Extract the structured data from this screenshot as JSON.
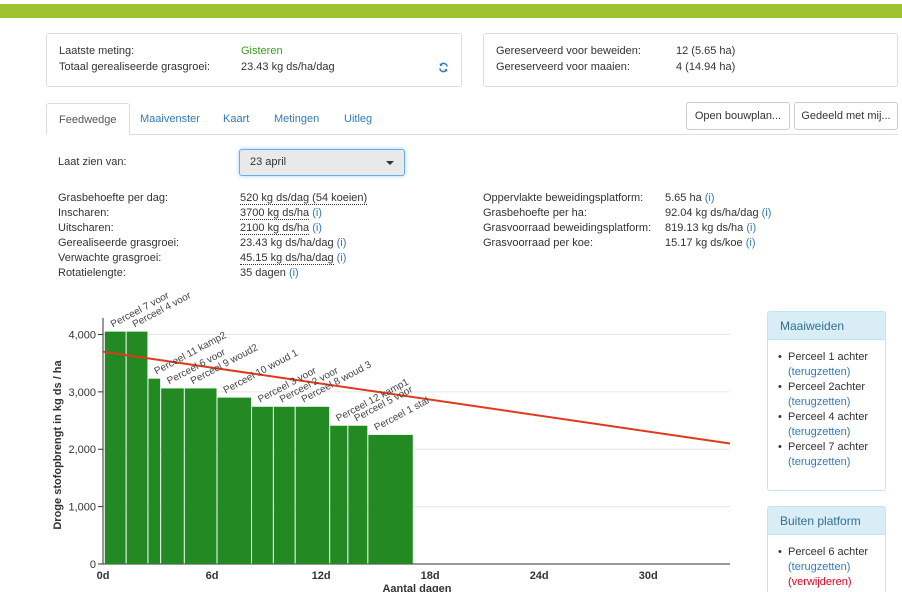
{
  "header_left": {
    "last_label": "Laatste meting:",
    "last_value": "Gisteren",
    "growth_label": "Totaal gerealiseerde grasgroei:",
    "growth_value": "23.43 kg ds/ha/dag"
  },
  "header_right": {
    "graze_label": "Gereserveerd voor beweiden:",
    "graze_value": "12 (5.65 ha)",
    "mow_label": "Gereserveerd voor maaien:",
    "mow_value": "4 (14.94 ha)"
  },
  "tabs": [
    "Feedwedge",
    "Maaivenster",
    "Kaart",
    "Metingen",
    "Uitleg"
  ],
  "buttons": {
    "open": "Open bouwplan...",
    "shared": "Gedeeld met mij..."
  },
  "select": {
    "label": "Laat zien van:",
    "value": "23 april"
  },
  "info_left": [
    {
      "label": "Grasbehoefte per dag:",
      "value": "520 kg ds/dag (54 koeien)"
    },
    {
      "label": "Inscharen:",
      "value": "3700 kg ds/ha",
      "info": "(i)"
    },
    {
      "label": "Uitscharen:",
      "value": "2100 kg ds/ha",
      "info": "(i)"
    },
    {
      "label": "Gerealiseerde grasgroei:",
      "value": "23.43 kg ds/ha/dag",
      "info": "(i)"
    },
    {
      "label": "Verwachte grasgroei:",
      "value": "45.15 kg ds/ha/dag",
      "info": "(i)"
    },
    {
      "label": "Rotatielengte:",
      "value": "35 dagen",
      "info": "(i)"
    }
  ],
  "info_right": [
    {
      "label": "Oppervlakte beweidingsplatform:",
      "value": "5.65 ha",
      "info": "(i)"
    },
    {
      "label": "Grasbehoefte per ha:",
      "value": "92.04 kg ds/ha/dag",
      "info": "(i)"
    },
    {
      "label": "Grasvoorraad beweidingsplatform:",
      "value": "819.13 kg ds/ha",
      "info": "(i)"
    },
    {
      "label": "Grasvoorraad per koe:",
      "value": "15.17 kg ds/koe",
      "info": "(i)"
    }
  ],
  "chart_data": {
    "type": "bar",
    "ylabel": "Droge stofopbrengt in kg ds / ha",
    "xlabel": "Aantal dagen",
    "ylim": [
      0,
      4200
    ],
    "xlim": [
      0,
      34.5
    ],
    "yticks": [
      "0",
      "1,000",
      "2,000",
      "3,000",
      "4,000"
    ],
    "yticks_values": [
      0,
      1000,
      2000,
      3000,
      4000
    ],
    "xticks": [
      "0d",
      "6d",
      "12d",
      "18d",
      "24d",
      "30d"
    ],
    "xticks_values": [
      0,
      6,
      12,
      18,
      24,
      30
    ],
    "bars": [
      {
        "label": "Perceel 7 voor",
        "x0": 0.1,
        "x1": 1.3,
        "value": 4050
      },
      {
        "label": "Perceel 4 voor",
        "x0": 1.3,
        "x1": 2.5,
        "value": 4050
      },
      {
        "label": "Perceel 11 kamp2",
        "x0": 2.5,
        "x1": 3.2,
        "value": 3230
      },
      {
        "label": "Perceel 6 voor",
        "x0": 3.2,
        "x1": 4.5,
        "value": 3060
      },
      {
        "label": "Perceel 9 woud2",
        "x0": 4.5,
        "x1": 6.3,
        "value": 3060
      },
      {
        "label": "Perceel 10 woud 1",
        "x0": 6.3,
        "x1": 8.2,
        "value": 2900
      },
      {
        "label": "Perceel 3 voor",
        "x0": 8.2,
        "x1": 9.4,
        "value": 2740
      },
      {
        "label": "Perceel 2 voor",
        "x0": 9.4,
        "x1": 10.6,
        "value": 2740
      },
      {
        "label": "Perceel 8 woud 3",
        "x0": 10.6,
        "x1": 12.5,
        "value": 2740
      },
      {
        "label": "Perceel 12 kamp1",
        "x0": 12.5,
        "x1": 13.5,
        "value": 2410
      },
      {
        "label": "Perceel 5 voor",
        "x0": 13.5,
        "x1": 14.6,
        "value": 2410
      },
      {
        "label": "Perceel 1 stal",
        "x0": 14.6,
        "x1": 17.1,
        "value": 2250
      }
    ],
    "target_line": {
      "x": [
        0,
        34.5
      ],
      "y": [
        3700,
        2100
      ]
    },
    "bar_color": "#238a23",
    "line_color": "#e0391c"
  },
  "maaiweiden": {
    "title": "Maaiweiden",
    "items": [
      {
        "name": "Perceel 1 achter",
        "action": "(terugzetten)"
      },
      {
        "name": "Perceel 2achter",
        "action": "(terugzetten)"
      },
      {
        "name": "Perceel 4 achter",
        "action": "(terugzetten)"
      },
      {
        "name": "Perceel 7 achter",
        "action": "(terugzetten)"
      }
    ]
  },
  "buiten": {
    "title": "Buiten platform",
    "items": [
      {
        "name": "Perceel 6 achter",
        "action": "(terugzetten)",
        "action2": "(verwijderen)"
      }
    ]
  }
}
